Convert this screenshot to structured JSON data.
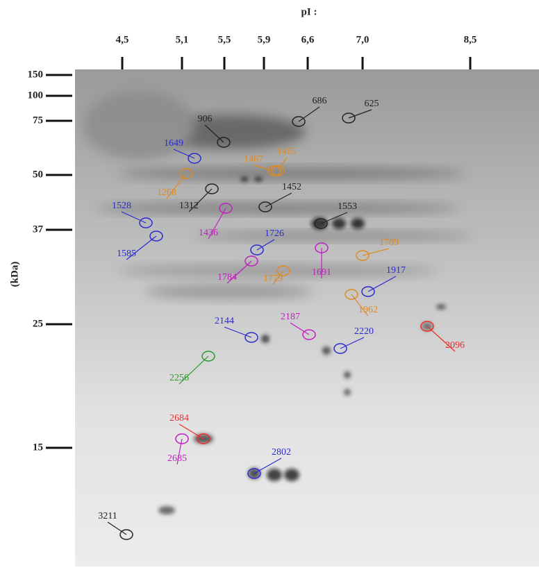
{
  "axis_top": {
    "title": "pI :",
    "ticks": [
      "4,5",
      "5,1",
      "5,5",
      "5,9",
      "6,6",
      "7,0",
      "8,5"
    ]
  },
  "axis_left": {
    "title": "(kDa)",
    "ticks": [
      "150",
      "100",
      "75",
      "50",
      "37",
      "25",
      "15"
    ]
  },
  "spots": [
    {
      "label": "906",
      "color": "#222222"
    },
    {
      "label": "686",
      "color": "#222222"
    },
    {
      "label": "625",
      "color": "#222222"
    },
    {
      "label": "1649",
      "color": "#2a2ad0"
    },
    {
      "label": "1268",
      "color": "#e08a20"
    },
    {
      "label": "1467",
      "color": "#e08a20"
    },
    {
      "label": "1455",
      "color": "#e08a20"
    },
    {
      "label": "1452",
      "color": "#222222"
    },
    {
      "label": "1312",
      "color": "#222222"
    },
    {
      "label": "1528",
      "color": "#2a2ad0"
    },
    {
      "label": "1585",
      "color": "#2a2ad0"
    },
    {
      "label": "1436",
      "color": "#c020c0"
    },
    {
      "label": "1553",
      "color": "#222222"
    },
    {
      "label": "1726",
      "color": "#2a2ad0"
    },
    {
      "label": "1784",
      "color": "#c020c0"
    },
    {
      "label": "1779",
      "color": "#e08a20"
    },
    {
      "label": "1691",
      "color": "#c020c0"
    },
    {
      "label": "1789",
      "color": "#e08a20"
    },
    {
      "label": "1917",
      "color": "#2a2ad0"
    },
    {
      "label": "1962",
      "color": "#e08a20"
    },
    {
      "label": "2144",
      "color": "#2a2ad0"
    },
    {
      "label": "2187",
      "color": "#c020c0"
    },
    {
      "label": "2220",
      "color": "#2a2ad0"
    },
    {
      "label": "2096",
      "color": "#ee2a2a"
    },
    {
      "label": "2256",
      "color": "#2a9a2a"
    },
    {
      "label": "2684",
      "color": "#ee2a2a"
    },
    {
      "label": "2685",
      "color": "#c020c0"
    },
    {
      "label": "2802",
      "color": "#2a2ad0"
    },
    {
      "label": "3211",
      "color": "#222222"
    }
  ]
}
